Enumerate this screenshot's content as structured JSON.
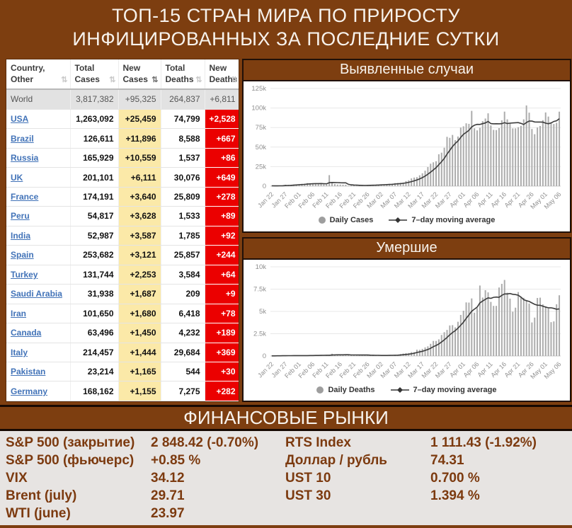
{
  "page": {
    "title_line1": "ТОП-15 СТРАН МИРА ПО ПРИРОСТУ",
    "title_line2": "ИНФИЦИРОВАННЫХ ЗА ПОСЛЕДНИЕ СУТКИ"
  },
  "colors": {
    "background_brown": "#7D3E10",
    "new_deaths_red": "#EB0000",
    "new_cases_yellow": "#FBE9A8",
    "country_link_blue": "#4273B8",
    "financial_text_brown": "#7C3A0F",
    "financial_panel_gray": "#E7E4E2",
    "bar_gray": "#ACACAC",
    "line_dark": "#3C3C3C"
  },
  "table": {
    "headers": [
      {
        "label": "Country, Other",
        "sort": "inactive"
      },
      {
        "label": "Total Cases",
        "sort": "inactive"
      },
      {
        "label": "New Cases",
        "sort": "active"
      },
      {
        "label": "Total Deaths",
        "sort": "inactive"
      },
      {
        "label": "New Deaths",
        "sort": "inactive"
      }
    ],
    "world_row": {
      "country": "World",
      "total_cases": "3,817,382",
      "new_cases": "+95,325",
      "total_deaths": "264,837",
      "new_deaths": "+6,811"
    },
    "rows": [
      {
        "country": "USA",
        "total_cases": "1,263,092",
        "new_cases": "+25,459",
        "total_deaths": "74,799",
        "new_deaths": "+2,528"
      },
      {
        "country": "Brazil",
        "total_cases": "126,611",
        "new_cases": "+11,896",
        "total_deaths": "8,588",
        "new_deaths": "+667"
      },
      {
        "country": "Russia",
        "total_cases": "165,929",
        "new_cases": "+10,559",
        "total_deaths": "1,537",
        "new_deaths": "+86"
      },
      {
        "country": "UK",
        "total_cases": "201,101",
        "new_cases": "+6,111",
        "total_deaths": "30,076",
        "new_deaths": "+649"
      },
      {
        "country": "France",
        "total_cases": "174,191",
        "new_cases": "+3,640",
        "total_deaths": "25,809",
        "new_deaths": "+278"
      },
      {
        "country": "Peru",
        "total_cases": "54,817",
        "new_cases": "+3,628",
        "total_deaths": "1,533",
        "new_deaths": "+89"
      },
      {
        "country": "India",
        "total_cases": "52,987",
        "new_cases": "+3,587",
        "total_deaths": "1,785",
        "new_deaths": "+92"
      },
      {
        "country": "Spain",
        "total_cases": "253,682",
        "new_cases": "+3,121",
        "total_deaths": "25,857",
        "new_deaths": "+244"
      },
      {
        "country": "Turkey",
        "total_cases": "131,744",
        "new_cases": "+2,253",
        "total_deaths": "3,584",
        "new_deaths": "+64"
      },
      {
        "country": "Saudi Arabia",
        "total_cases": "31,938",
        "new_cases": "+1,687",
        "total_deaths": "209",
        "new_deaths": "+9"
      },
      {
        "country": "Iran",
        "total_cases": "101,650",
        "new_cases": "+1,680",
        "total_deaths": "6,418",
        "new_deaths": "+78"
      },
      {
        "country": "Canada",
        "total_cases": "63,496",
        "new_cases": "+1,450",
        "total_deaths": "4,232",
        "new_deaths": "+189"
      },
      {
        "country": "Italy",
        "total_cases": "214,457",
        "new_cases": "+1,444",
        "total_deaths": "29,684",
        "new_deaths": "+369"
      },
      {
        "country": "Pakistan",
        "total_cases": "23,214",
        "new_cases": "+1,165",
        "total_deaths": "544",
        "new_deaths": "+30"
      },
      {
        "country": "Germany",
        "total_cases": "168,162",
        "new_cases": "+1,155",
        "total_deaths": "7,275",
        "new_deaths": "+282"
      }
    ]
  },
  "chart_data": [
    {
      "type": "bar",
      "title": "Выявленные случаи",
      "xlabel": "",
      "ylabel": "",
      "x_start": "Jan 22",
      "x_end": "May 06",
      "tick_every": 5,
      "tick_labels": [
        "Jan 22",
        "Jan 27",
        "Feb 01",
        "Feb 06",
        "Feb 11",
        "Feb 16",
        "Feb 21",
        "Feb 26",
        "Mar 02",
        "Mar 07",
        "Mar 12",
        "Mar 17",
        "Mar 22",
        "Mar 27",
        "Apr 01",
        "Apr 06",
        "Apr 11",
        "Apr 16",
        "Apr 21",
        "Apr 26",
        "May 01",
        "May 06"
      ],
      "ylim": [
        0,
        125000
      ],
      "ytick_values": [
        0,
        25000,
        50000,
        75000,
        100000,
        125000
      ],
      "ytick_labels": [
        "0",
        "25k",
        "50k",
        "75k",
        "100k",
        "125k"
      ],
      "grid": true,
      "legend_position": "bottom",
      "series": [
        {
          "name": "Daily Cases",
          "type": "bar",
          "values": [
            441,
            265,
            468,
            703,
            786,
            1778,
            1482,
            1755,
            2005,
            2127,
            2603,
            2836,
            3239,
            3927,
            3723,
            3163,
            3437,
            2676,
            3016,
            2545,
            2071,
            14108,
            5151,
            2662,
            2097,
            2069,
            1893,
            1752,
            545,
            892,
            1021,
            1027,
            650,
            910,
            1085,
            1368,
            1429,
            1800,
            1905,
            1829,
            2166,
            2467,
            2388,
            2875,
            3160,
            3915,
            4023,
            4302,
            4636,
            6486,
            7506,
            9909,
            10982,
            11529,
            13903,
            16459,
            19764,
            24418,
            28709,
            30489,
            31871,
            40788,
            42847,
            49219,
            63109,
            61849,
            65541,
            58944,
            63536,
            74944,
            76566,
            80424,
            79740,
            96340,
            74060,
            71344,
            74676,
            83195,
            86545,
            93194,
            77699,
            71972,
            71753,
            74271,
            84258,
            95370,
            85464,
            81153,
            73920,
            73964,
            75437,
            77119,
            85472,
            103244,
            94070,
            73160,
            66470,
            74984,
            77031,
            84470,
            94316,
            89047,
            80180,
            79545,
            81072,
            95325
          ]
        },
        {
          "name": "7–day moving average",
          "type": "line",
          "derived": "7-day moving average of Daily Cases"
        }
      ]
    },
    {
      "type": "bar",
      "title": "Умершие",
      "xlabel": "",
      "ylabel": "",
      "x_start": "Jan 22",
      "x_end": "May 06",
      "tick_every": 5,
      "tick_labels": [
        "Jan 22",
        "Jan 27",
        "Feb 01",
        "Feb 06",
        "Feb 11",
        "Feb 16",
        "Feb 21",
        "Feb 26",
        "Mar 02",
        "Mar 07",
        "Mar 12",
        "Mar 17",
        "Mar 22",
        "Mar 27",
        "Apr 01",
        "Apr 06",
        "Apr 11",
        "Apr 16",
        "Apr 21",
        "Apr 26",
        "May 01",
        "May 06"
      ],
      "ylim": [
        0,
        10000
      ],
      "ytick_values": [
        0,
        2500,
        5000,
        7500,
        10000
      ],
      "ytick_labels": [
        "0",
        "2.5k",
        "5k",
        "7.5k",
        "10k"
      ],
      "grid": true,
      "legend_position": "bottom",
      "series": [
        {
          "name": "Daily Deaths",
          "type": "bar",
          "values": [
            17,
            18,
            26,
            26,
            56,
            65,
            66,
            38,
            43,
            46,
            46,
            45,
            57,
            65,
            66,
            73,
            73,
            86,
            89,
            97,
            108,
            97,
            254,
            146,
            142,
            106,
            98,
            136,
            115,
            118,
            109,
            150,
            71,
            160,
            79,
            67,
            46,
            57,
            64,
            58,
            72,
            83,
            87,
            100,
            103,
            103,
            95,
            226,
            271,
            331,
            337,
            441,
            438,
            709,
            692,
            800,
            964,
            1087,
            1367,
            1690,
            1689,
            1869,
            2360,
            2672,
            2925,
            3427,
            3462,
            3211,
            3840,
            4607,
            5077,
            6011,
            5992,
            6456,
            4857,
            5373,
            7904,
            6554,
            7382,
            7137,
            6066,
            5621,
            5621,
            7682,
            8093,
            8528,
            7096,
            6434,
            4964,
            5421,
            7172,
            6587,
            6525,
            6284,
            5891,
            3764,
            4310,
            6509,
            6545,
            5790,
            5580,
            5312,
            3797,
            3881,
            5805,
            6811
          ]
        },
        {
          "name": "7–day moving average",
          "type": "line",
          "derived": "7-day moving average of Daily Deaths"
        }
      ]
    }
  ],
  "financial": {
    "title": "ФИНАНСОВЫЕ РЫНКИ",
    "rows": [
      {
        "label1": "S&P 500 (закрытие)",
        "value1": "2 848.42 (-0.70%)",
        "label2": "RTS Index",
        "value2": "1 111.43 (-1.92%)"
      },
      {
        "label1": "S&P 500 (фьючерс)",
        "value1": "+0.85 %",
        "label2": "Доллар / рубль",
        "value2": "74.31"
      },
      {
        "label1": "VIX",
        "value1": "34.12",
        "label2": "UST 10",
        "value2": "0.700 %"
      },
      {
        "label1": "Brent (july)",
        "value1": "29.71",
        "label2": "UST 30",
        "value2": "1.394 %"
      },
      {
        "label1": "WTI (june)",
        "value1": "23.97",
        "label2": "",
        "value2": ""
      }
    ]
  }
}
